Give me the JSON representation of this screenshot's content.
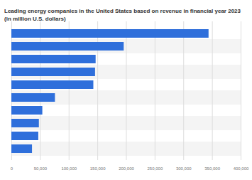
{
  "chart_data": {
    "type": "bar",
    "title": "Leading energy companies in the United States based on revenue in financial year 2023 (in million U.S. dollars)",
    "orientation": "horizontal",
    "categories": [
      null,
      null,
      null,
      null,
      null,
      null,
      null,
      null,
      null,
      null
    ],
    "values": [
      344000,
      196000,
      147000,
      146000,
      143000,
      76000,
      54000,
      48000,
      47000,
      36000
    ],
    "color": "#2f6fdb",
    "xlim": [
      0,
      400000
    ],
    "xticks": [
      0,
      {
        "value": 50000,
        "label": "50,000"
      },
      {
        "value": 100000,
        "label": "100,000"
      },
      {
        "value": 150000,
        "label": "150,000"
      },
      {
        "value": 200000,
        "label": "200,000"
      },
      {
        "value": 250000,
        "label": "250,000"
      },
      {
        "value": 300000,
        "label": "300,000"
      },
      {
        "value": 350000,
        "label": "350,000"
      },
      {
        "value": 400000,
        "label": "400,000"
      }
    ],
    "grid": true
  }
}
